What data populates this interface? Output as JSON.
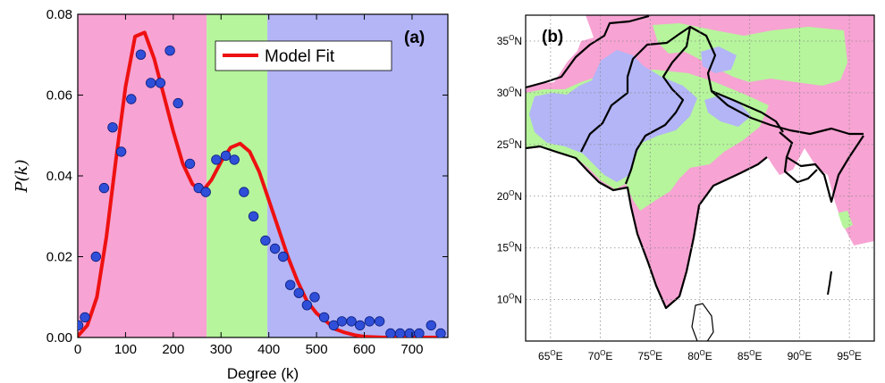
{
  "chart_data": [
    {
      "panel_label": "(a)",
      "type": "scatter",
      "xlabel": "Degree (k)",
      "ylabel": "P(k)",
      "xlim": [
        0,
        775
      ],
      "ylim": [
        0,
        0.08
      ],
      "xticks": [
        0,
        100,
        200,
        300,
        400,
        500,
        600,
        700
      ],
      "yticks": [
        0.0,
        0.02,
        0.04,
        0.06,
        0.08
      ],
      "ytick_labels": [
        "0.00",
        "0.02",
        "0.04",
        "0.06",
        "0.08"
      ],
      "legend": {
        "label": "Model Fit",
        "placement": "top-center"
      },
      "background_bands": [
        {
          "from": 0,
          "to": 270,
          "color": "#f7a3d3"
        },
        {
          "from": 270,
          "to": 397,
          "color": "#b6f59c"
        },
        {
          "from": 397,
          "to": 775,
          "color": "#b3b5f7"
        }
      ],
      "colors": {
        "points": "#2f4fd9",
        "points_edge": "#0b1c7a",
        "fit": "#ee1111"
      },
      "points": [
        [
          1,
          0.003
        ],
        [
          15,
          0.005
        ],
        [
          38,
          0.02
        ],
        [
          55,
          0.037
        ],
        [
          73,
          0.052
        ],
        [
          91,
          0.046
        ],
        [
          112,
          0.059
        ],
        [
          132,
          0.07
        ],
        [
          153,
          0.063
        ],
        [
          173,
          0.063
        ],
        [
          193,
          0.071
        ],
        [
          210,
          0.058
        ],
        [
          235,
          0.043
        ],
        [
          253,
          0.037
        ],
        [
          268,
          0.036
        ],
        [
          290,
          0.044
        ],
        [
          310,
          0.045
        ],
        [
          328,
          0.044
        ],
        [
          348,
          0.036
        ],
        [
          368,
          0.03
        ],
        [
          393,
          0.024
        ],
        [
          413,
          0.022
        ],
        [
          430,
          0.02
        ],
        [
          445,
          0.013
        ],
        [
          463,
          0.011
        ],
        [
          480,
          0.008
        ],
        [
          496,
          0.01
        ],
        [
          516,
          0.005
        ],
        [
          536,
          0.003
        ],
        [
          553,
          0.004
        ],
        [
          573,
          0.004
        ],
        [
          591,
          0.003
        ],
        [
          611,
          0.004
        ],
        [
          632,
          0.004
        ],
        [
          655,
          0.001
        ],
        [
          675,
          0.001
        ],
        [
          695,
          0.001
        ],
        [
          715,
          0.001
        ],
        [
          740,
          0.003
        ],
        [
          760,
          0.001
        ]
      ],
      "model_fit": [
        [
          0,
          0.0003
        ],
        [
          20,
          0.003
        ],
        [
          40,
          0.01
        ],
        [
          60,
          0.025
        ],
        [
          80,
          0.044
        ],
        [
          100,
          0.062
        ],
        [
          120,
          0.0745
        ],
        [
          140,
          0.0755
        ],
        [
          160,
          0.069
        ],
        [
          180,
          0.06
        ],
        [
          200,
          0.051
        ],
        [
          220,
          0.043
        ],
        [
          240,
          0.038
        ],
        [
          260,
          0.036
        ],
        [
          280,
          0.039
        ],
        [
          300,
          0.0435
        ],
        [
          320,
          0.047
        ],
        [
          340,
          0.048
        ],
        [
          360,
          0.046
        ],
        [
          380,
          0.041
        ],
        [
          400,
          0.034
        ],
        [
          420,
          0.027
        ],
        [
          440,
          0.02
        ],
        [
          460,
          0.014
        ],
        [
          480,
          0.009
        ],
        [
          500,
          0.006
        ],
        [
          520,
          0.004
        ],
        [
          540,
          0.002
        ],
        [
          560,
          0.0012
        ],
        [
          580,
          0.0006
        ],
        [
          600,
          0.0002
        ],
        [
          640,
          0.0
        ],
        [
          700,
          0.0
        ],
        [
          760,
          0.0
        ]
      ]
    },
    {
      "panel_label": "(b)",
      "type": "heatmap",
      "lon_labels": [
        "65",
        "70",
        "75",
        "80",
        "85",
        "90",
        "95"
      ],
      "lat_labels": [
        "10",
        "15",
        "20",
        "25",
        "30",
        "35"
      ],
      "degree_symbol": "O",
      "east_suffix": "E",
      "north_suffix": "N",
      "lon_range": [
        62.5,
        97.5
      ],
      "lat_range": [
        6,
        37.5
      ],
      "colors": {
        "low_degree": "#f7a3d3",
        "mid_degree": "#b6f59c",
        "high_degree": "#b3b5f7",
        "land_border": "#000000",
        "gridline": "#888888"
      }
    }
  ]
}
